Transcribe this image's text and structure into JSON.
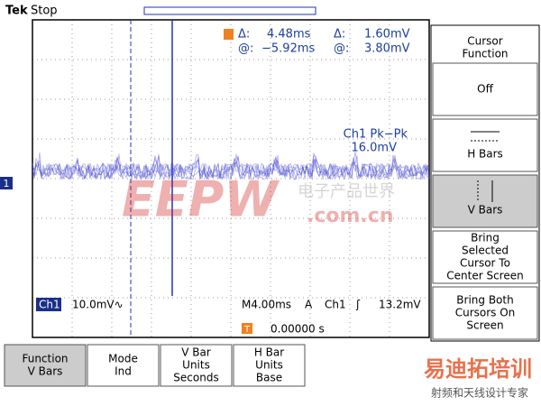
{
  "header": {
    "brand": "Tek",
    "state": "Stop"
  },
  "readout": {
    "delta_label_1": "Δ:",
    "delta_time": "4.48ms",
    "delta_label_2": "Δ:",
    "delta_volt": "1.60mV",
    "at_label_1": "@:",
    "at_time": "−5.92ms",
    "at_label_2": "@:",
    "at_volt": "3.80mV"
  },
  "measurement": {
    "name": "Ch1 Pk−Pk",
    "value": "16.0mV"
  },
  "channel": {
    "marker": "1",
    "name": "Ch1",
    "scale": "10.0mV∿"
  },
  "timebase": {
    "scale": "M4.00ms",
    "mode": "A",
    "source": "Ch1",
    "slope": "ʃ",
    "level": "13.2mV",
    "trigger_marker": "T",
    "position": "0.00000 s"
  },
  "side_menu": {
    "title": [
      "Cursor",
      "Function"
    ],
    "items": [
      {
        "lines": [
          "Off"
        ]
      },
      {
        "lines": [
          "H Bars"
        ]
      },
      {
        "lines": [
          "V Bars"
        ]
      },
      {
        "lines": [
          "Bring",
          "Selected",
          "Cursor To",
          "Center Screen"
        ]
      },
      {
        "lines": [
          "Bring Both",
          "Cursors On",
          "Screen"
        ]
      }
    ]
  },
  "bottom_menu": [
    {
      "lines": [
        "Function",
        "V Bars"
      ]
    },
    {
      "lines": [
        "Mode",
        "Ind"
      ]
    },
    {
      "lines": [
        "V Bar",
        "Units",
        "Seconds"
      ]
    },
    {
      "lines": [
        "H Bar",
        "Units",
        "Base"
      ]
    }
  ],
  "watermark": {
    "logo": "EEPW",
    "cn": "电子产品世界",
    "domain": ".com.cn",
    "brand2": "易迪拓培训",
    "slogan": "射频和天线设计专家"
  }
}
